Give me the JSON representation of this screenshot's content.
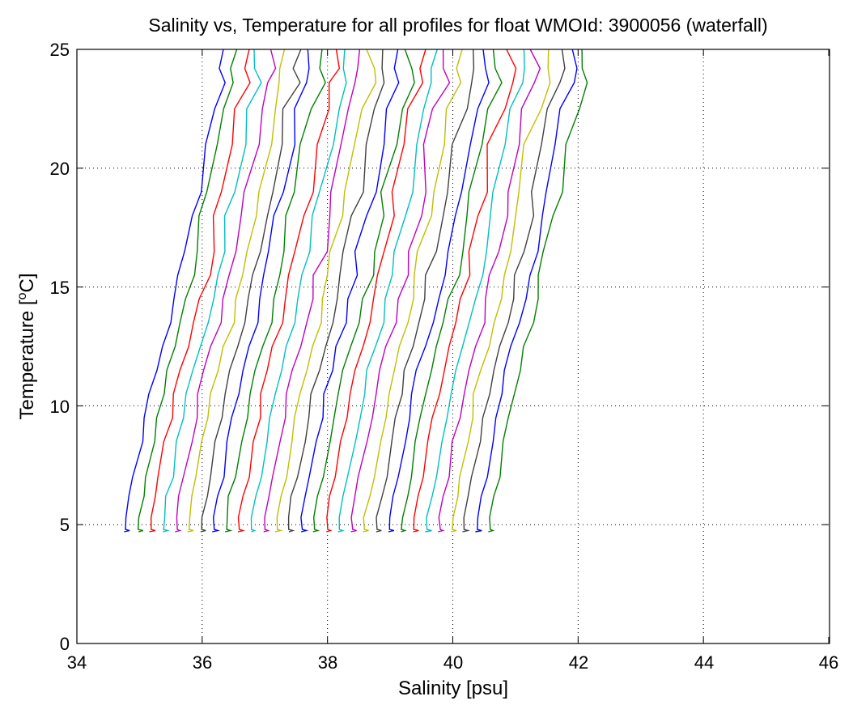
{
  "chart_data": {
    "type": "line",
    "title": "Salinity vs, Temperature for all profiles for float WMOId: 3900056 (waterfall)",
    "xlabel": "Salinity [psu]",
    "ylabel_main": "Temperature [",
    "ylabel_sup": "o",
    "ylabel_end": "C]",
    "xlim": [
      34,
      46
    ],
    "ylim": [
      0,
      25
    ],
    "xticks": [
      "34",
      "36",
      "38",
      "40",
      "42",
      "44",
      "46"
    ],
    "yticks": [
      "0",
      "5",
      "10",
      "15",
      "20",
      "25"
    ],
    "grid": true,
    "color_cycle": [
      "#0000ff",
      "#008000",
      "#ff0000",
      "#00bfbf",
      "#bf00bf",
      "#bfbf00",
      "#404040"
    ],
    "profile_offset_psu": 0.2,
    "first_profile_x": [
      [
        34.77,
        4.7
      ],
      [
        34.85,
        4.75
      ],
      [
        34.79,
        4.8
      ],
      [
        34.79,
        5.3
      ],
      [
        34.85,
        6.2
      ],
      [
        34.92,
        7.0
      ],
      [
        35.02,
        8.5
      ],
      [
        35.1,
        9.5
      ],
      [
        35.16,
        10.5
      ],
      [
        35.25,
        11.5
      ],
      [
        35.35,
        12.5
      ],
      [
        35.48,
        13.5
      ],
      [
        35.55,
        14.5
      ],
      [
        35.65,
        15.5
      ],
      [
        35.72,
        16.5
      ],
      [
        35.82,
        18.0
      ],
      [
        35.9,
        19.0
      ],
      [
        36.02,
        21.0
      ],
      [
        36.15,
        22.5
      ],
      [
        36.3,
        23.6
      ],
      [
        36.32,
        24.2
      ],
      [
        36.3,
        25.0
      ]
    ],
    "profile_count": 30
  }
}
